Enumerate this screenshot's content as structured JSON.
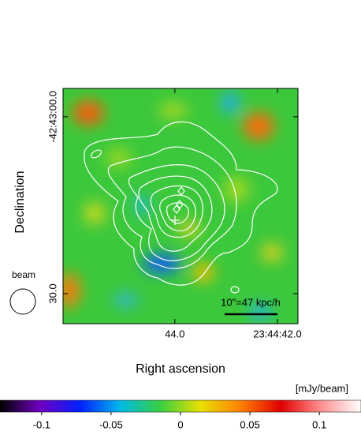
{
  "chart_data": {
    "type": "image",
    "xlabel": "Right ascension",
    "ylabel": "Declination",
    "xlim": [
      46.18,
      41.6
    ],
    "xticks": [
      {
        "value": 44,
        "label": "44.0"
      },
      {
        "value": 42,
        "label": "23:44:42.0"
      }
    ],
    "ylim": [
      35.1,
      -4.8
    ],
    "yticks": [
      {
        "value": 0,
        "label": "-42:43:00.0"
      },
      {
        "value": 30,
        "label": "30.0"
      }
    ],
    "beam_label": "beam",
    "scale_bar_label": "10\"=47 kpc/h",
    "colorbar": {
      "label": "[mJy/beam]",
      "lim": [
        -0.13,
        0.13
      ],
      "ticks": [
        -0.1,
        -0.05,
        0,
        0.05,
        0.1
      ],
      "colormap": [
        "#000000",
        "#7000c0",
        "#0020ff",
        "#00b8e8",
        "#38d040",
        "#e8e000",
        "#ff8000",
        "#e00000",
        "#ff9090",
        "#ffffff"
      ]
    }
  }
}
